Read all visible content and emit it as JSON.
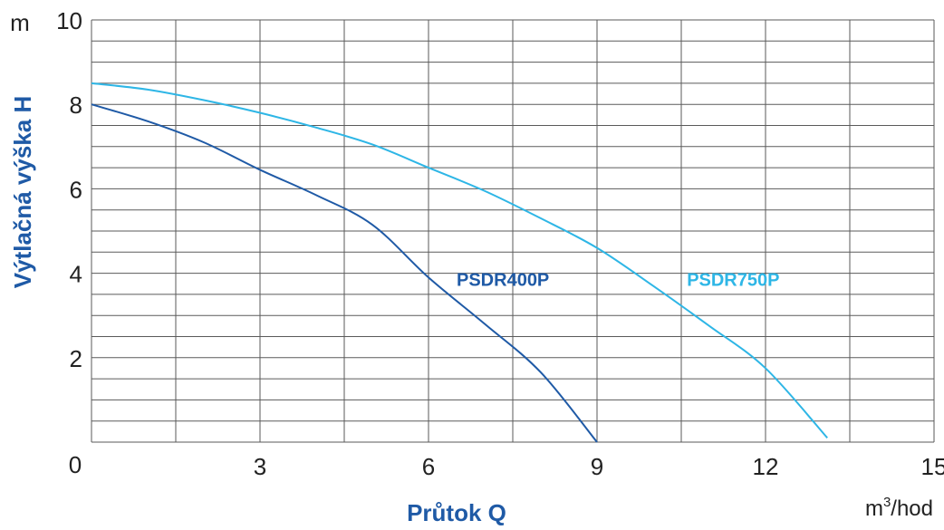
{
  "chart_data": {
    "type": "line",
    "xlabel": "Průtok Q",
    "ylabel": "Výtlačná výška H",
    "x_unit_base": "m",
    "x_unit_exp": "3",
    "x_unit_rest": "/hod",
    "y_unit": "m",
    "origin_label": "0",
    "xlim": [
      0,
      15
    ],
    "ylim": [
      0,
      10
    ],
    "x_ticks": [
      3,
      6,
      9,
      12,
      15
    ],
    "y_ticks": [
      2,
      4,
      6,
      8,
      10
    ],
    "x_minor_step": 1.5,
    "y_minor_step": 0.5,
    "grid": true,
    "series": [
      {
        "name": "PSDR400P",
        "color": "#1f5aa6",
        "points": [
          [
            0,
            8.0
          ],
          [
            1,
            7.6
          ],
          [
            2,
            7.1
          ],
          [
            3,
            6.45
          ],
          [
            4,
            5.85
          ],
          [
            5,
            5.15
          ],
          [
            6,
            3.9
          ],
          [
            7,
            2.8
          ],
          [
            8,
            1.65
          ],
          [
            9,
            0.0
          ]
        ]
      },
      {
        "name": "PSDR750P",
        "color": "#2eb6e6",
        "points": [
          [
            0,
            8.5
          ],
          [
            1,
            8.35
          ],
          [
            2,
            8.1
          ],
          [
            3,
            7.8
          ],
          [
            4,
            7.45
          ],
          [
            5,
            7.05
          ],
          [
            6,
            6.5
          ],
          [
            7,
            5.95
          ],
          [
            8,
            5.3
          ],
          [
            9,
            4.6
          ],
          [
            10,
            3.7
          ],
          [
            11,
            2.75
          ],
          [
            12,
            1.75
          ],
          [
            13.1,
            0.1
          ]
        ]
      }
    ],
    "label_positions": [
      [
        6.5,
        3.7
      ],
      [
        10.6,
        3.7
      ]
    ]
  }
}
